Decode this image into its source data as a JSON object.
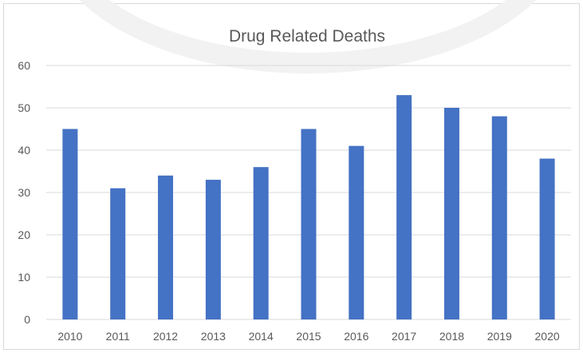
{
  "chart_data": {
    "type": "bar",
    "title": "Drug Related Deaths",
    "xlabel": "",
    "ylabel": "",
    "categories": [
      "2010",
      "2011",
      "2012",
      "2013",
      "2014",
      "2015",
      "2016",
      "2017",
      "2018",
      "2019",
      "2020"
    ],
    "series": [
      {
        "values": [
          45,
          31,
          34,
          33,
          36,
          45,
          41,
          53,
          50,
          48,
          38
        ]
      }
    ],
    "ylim": [
      0,
      60
    ],
    "yticks": [
      0,
      10,
      20,
      30,
      40,
      50,
      60
    ],
    "grid": true,
    "legend": "none",
    "colors": {
      "bar": "#4472c4",
      "grid": "#d9d9d9",
      "text": "#595959"
    }
  }
}
